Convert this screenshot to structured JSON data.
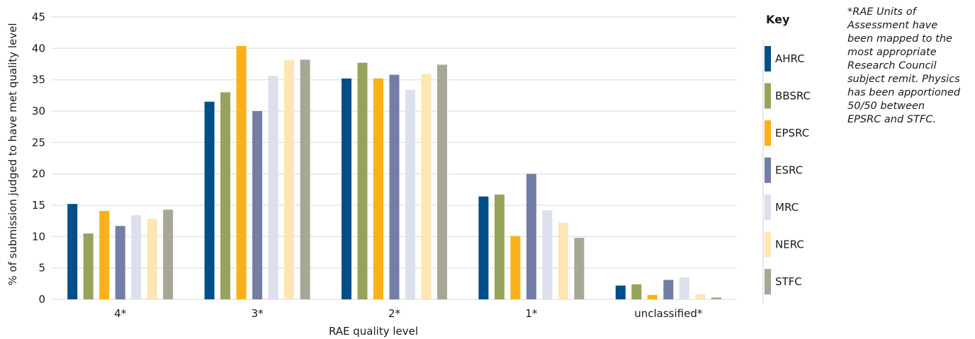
{
  "chart_data": {
    "type": "bar",
    "title": "",
    "xlabel": "RAE quality level",
    "ylabel": "% of submission judged to have met quality level",
    "ylim": [
      0,
      45
    ],
    "yticks": [
      0,
      5,
      10,
      15,
      20,
      25,
      30,
      35,
      40,
      45
    ],
    "grid": true,
    "legend_title": "Key",
    "legend_position": "right",
    "categories": [
      "4*",
      "3*",
      "2*",
      "1*",
      "unclassified*"
    ],
    "series": [
      {
        "name": "AHRC",
        "color": "#004f8b",
        "values": [
          15.2,
          31.5,
          35.2,
          16.4,
          2.2
        ]
      },
      {
        "name": "BBSRC",
        "color": "#96a35c",
        "values": [
          10.5,
          33.0,
          37.7,
          16.7,
          2.4
        ]
      },
      {
        "name": "EPSRC",
        "color": "#f9b11a",
        "values": [
          14.1,
          40.4,
          35.2,
          10.1,
          0.7
        ]
      },
      {
        "name": "ESRC",
        "color": "#737ea5",
        "values": [
          11.7,
          30.0,
          35.8,
          20.0,
          3.1
        ]
      },
      {
        "name": "MRC",
        "color": "#dcdfec",
        "values": [
          13.4,
          35.6,
          33.4,
          14.2,
          3.5
        ]
      },
      {
        "name": "NERC",
        "color": "#fde6b4",
        "values": [
          12.8,
          38.1,
          35.9,
          12.2,
          0.8
        ]
      },
      {
        "name": "STFC",
        "color": "#a8a796",
        "values": [
          14.3,
          38.2,
          37.4,
          9.8,
          0.3
        ]
      }
    ]
  },
  "note": {
    "lines": [
      "*RAE Units of",
      "Assessment have",
      "been mapped to the",
      "most appropriate",
      "Research Council",
      "subject remit. Physics",
      "has been apportioned",
      "50/50 between",
      "EPSRC and STFC."
    ]
  }
}
